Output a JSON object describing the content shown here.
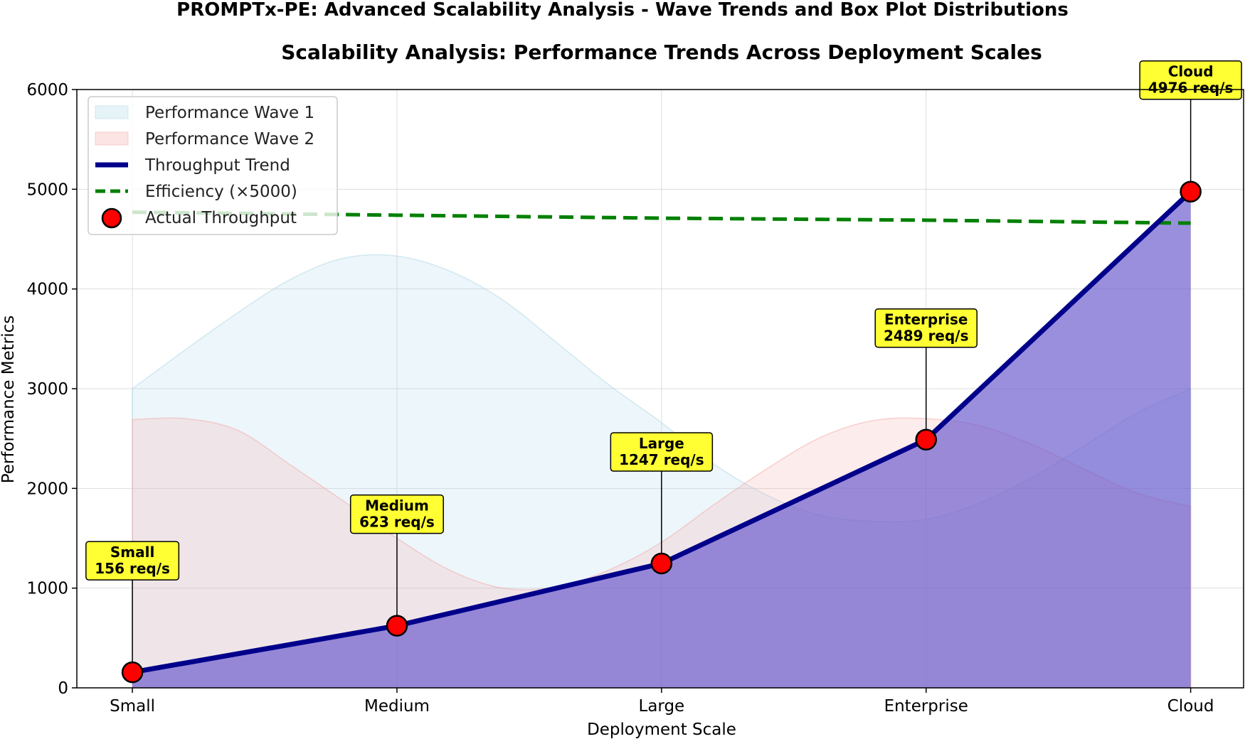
{
  "figure": {
    "suptitle": "PROMPTx-PE: Advanced Scalability Analysis - Wave Trends and Box Plot Distributions"
  },
  "chart_data": {
    "type": "line",
    "title": "Scalability Analysis: Performance Trends Across Deployment Scales",
    "xlabel": "Deployment Scale",
    "ylabel": "Performance Metrics",
    "categories": [
      "Small",
      "Medium",
      "Large",
      "Enterprise",
      "Cloud"
    ],
    "ylim": [
      0,
      6000
    ],
    "yticks": [
      0,
      1000,
      2000,
      3000,
      4000,
      5000,
      6000
    ],
    "grid": true,
    "legend_position": "top-left",
    "series": [
      {
        "name": "Performance Wave 1",
        "kind": "area",
        "color": "#add8e6",
        "x": [
          0,
          0.2,
          0.4,
          0.6,
          0.8,
          1.0,
          1.2,
          1.4,
          1.6,
          1.8,
          2.0,
          2.2,
          2.4,
          2.6,
          2.8,
          3.0,
          3.2,
          3.4,
          3.6,
          3.8,
          4.0
        ],
        "values": [
          3000,
          3390,
          3765,
          4100,
          4310,
          4330,
          4180,
          3890,
          3470,
          3040,
          2660,
          2240,
          1930,
          1730,
          1670,
          1690,
          1850,
          2110,
          2430,
          2760,
          3000
        ]
      },
      {
        "name": "Performance Wave 2",
        "kind": "area",
        "color": "#f4a7a7",
        "x": [
          0,
          0.2,
          0.4,
          0.6,
          0.8,
          1.0,
          1.2,
          1.4,
          1.6,
          1.8,
          2.0,
          2.2,
          2.4,
          2.6,
          2.8,
          3.0,
          3.2,
          3.4,
          3.6,
          3.8,
          4.0
        ],
        "values": [
          2690,
          2700,
          2580,
          2230,
          1870,
          1500,
          1180,
          1000,
          1010,
          1180,
          1460,
          1840,
          2200,
          2510,
          2680,
          2700,
          2630,
          2440,
          2190,
          1950,
          1820
        ]
      },
      {
        "name": "Throughput Trend",
        "kind": "line",
        "color": "#00008b",
        "values": [
          156,
          623,
          1247,
          2489,
          4976
        ]
      },
      {
        "name": "Efficiency (×5000)",
        "kind": "dashed-line",
        "color": "#008000",
        "values": [
          4770,
          4740,
          4710,
          4690,
          4660
        ]
      },
      {
        "name": "Actual Throughput",
        "kind": "markers",
        "color": "#ff0000",
        "values": [
          156,
          623,
          1247,
          2489,
          4976
        ]
      }
    ],
    "annotations": [
      {
        "line1": "Small",
        "line2": "156 req/s"
      },
      {
        "line1": "Medium",
        "line2": "623 req/s"
      },
      {
        "line1": "Large",
        "line2": "1247 req/s"
      },
      {
        "line1": "Enterprise",
        "line2": "2489 req/s"
      },
      {
        "line1": "Cloud",
        "line2": "4976 req/s"
      }
    ],
    "throughput_fill_color": "#6a5acd",
    "annotation_box_color": "#ffff33"
  }
}
